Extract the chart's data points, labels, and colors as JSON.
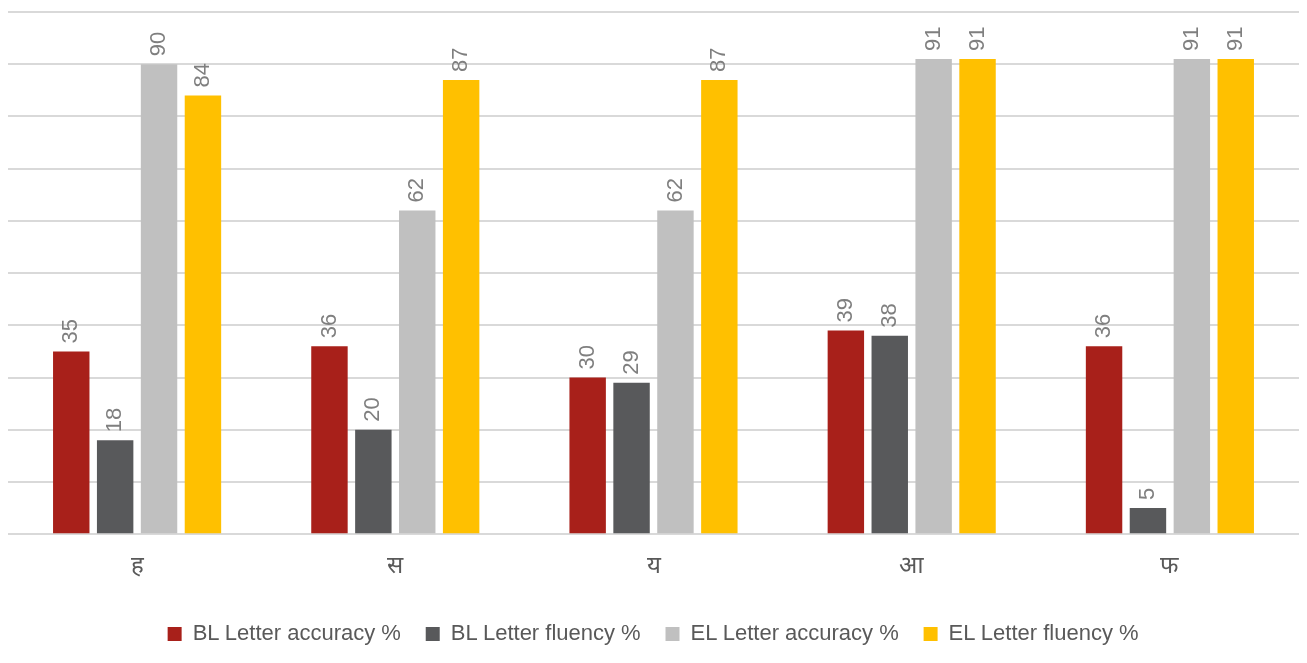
{
  "chart_data": {
    "type": "bar",
    "categories": [
      "ह",
      "स",
      "य",
      "आ",
      "फ"
    ],
    "series": [
      {
        "name": "BL Letter accuracy %",
        "color": "#a8201a",
        "values": [
          35,
          36,
          30,
          39,
          36
        ]
      },
      {
        "name": "BL Letter fluency %",
        "color": "#58595b",
        "values": [
          18,
          20,
          29,
          38,
          5
        ]
      },
      {
        "name": "EL Letter accuracy %",
        "color": "#c0c0c0",
        "values": [
          90,
          62,
          62,
          91,
          91
        ]
      },
      {
        "name": "EL Letter fluency %",
        "color": "#ffc000",
        "values": [
          84,
          87,
          87,
          91,
          91
        ]
      }
    ],
    "ylim": [
      0,
      100
    ],
    "yticks": [
      {
        "value": 0,
        "label": null
      },
      {
        "value": 10,
        "label": null
      },
      {
        "value": 20,
        "label": null
      },
      {
        "value": 30,
        "label": null
      },
      {
        "value": 40,
        "label": null
      },
      {
        "value": 50,
        "label": null
      },
      {
        "value": 60,
        "label": null
      },
      {
        "value": 70,
        "label": null
      },
      {
        "value": 80,
        "label": null
      },
      {
        "value": 90,
        "label": null
      },
      {
        "value": 100,
        "label": null
      }
    ],
    "tick_labels": "x",
    "grid": "y",
    "legend": "bottom",
    "data_labels": true
  }
}
